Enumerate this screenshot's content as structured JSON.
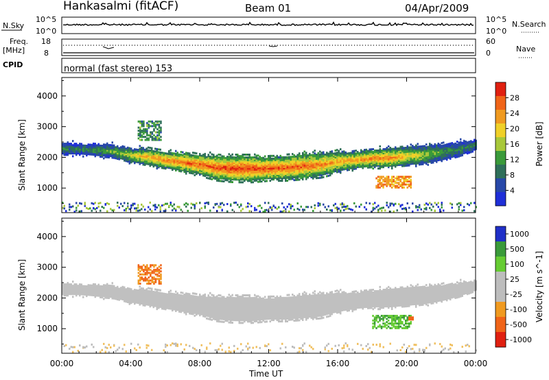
{
  "header": {
    "station": "Hankasalmi (fitACF)",
    "beam": "Beam 01",
    "date": "04/Apr/2009"
  },
  "strip_panels": {
    "nsky": {
      "label": "N.Sky",
      "tick_top": "10^5",
      "tick_bottom": "10^0",
      "right_tick_top": "10^5",
      "right_tick_bottom": "10^0",
      "right_label": "N.Search"
    },
    "freq": {
      "label_line1": "Freq.",
      "label_line2": "[MHz]",
      "tick_top": "18",
      "tick_bottom": "8",
      "right_tick_top": "60",
      "right_tick_bottom": "0",
      "right_label": "Nave"
    },
    "cpid": {
      "label": "CPID",
      "text": "normal (fast stereo) 153"
    }
  },
  "colors": {
    "power_scale": [
      "#1f2fd8",
      "#2848a8",
      "#2f6f5a",
      "#3a9a3a",
      "#a8c83a",
      "#f0d028",
      "#f09a20",
      "#f06418",
      "#e02010"
    ],
    "velocity_scale": [
      "#2030c8",
      "#3a9a3a",
      "#66cc33",
      "#bdbdbd",
      "#bdbdbd",
      "#f09a20",
      "#f06418",
      "#e02010"
    ],
    "ground_scatter": "#c0c0c0"
  },
  "chart_data": [
    {
      "type": "heatmap",
      "title": "",
      "ylabel": "Slant Range [km]",
      "xlabel": "Time UT",
      "x_ticks": [
        "00:00",
        "04:00",
        "08:00",
        "12:00",
        "16:00",
        "20:00",
        "00:00"
      ],
      "x_range_hours": [
        0,
        24
      ],
      "y_ticks": [
        1000,
        2000,
        3000,
        4000
      ],
      "ylim": [
        200,
        4600
      ],
      "colorbar": {
        "label": "Power [dB]",
        "ticks": [
          4,
          8,
          12,
          16,
          20,
          24,
          28
        ]
      },
      "main_band": {
        "description_hours": [
          0,
          1,
          2,
          3,
          4,
          5,
          6,
          7,
          8,
          9,
          10,
          11,
          12,
          13,
          14,
          15,
          16,
          17,
          18,
          19,
          20,
          21,
          22,
          23,
          24
        ],
        "upper_km": [
          2500,
          2450,
          2450,
          2400,
          2300,
          2300,
          2200,
          2150,
          2100,
          2050,
          2050,
          2050,
          2000,
          2050,
          2100,
          2150,
          2200,
          2200,
          2250,
          2300,
          2350,
          2400,
          2450,
          2500,
          2600
        ],
        "lower_km": [
          2150,
          2150,
          2100,
          2050,
          1900,
          1800,
          1700,
          1600,
          1500,
          1350,
          1300,
          1300,
          1350,
          1350,
          1400,
          1450,
          1600,
          1700,
          1750,
          1750,
          1800,
          1850,
          1950,
          2100,
          2300
        ],
        "peak_power_db": [
          10,
          10,
          12,
          14,
          18,
          22,
          24,
          25,
          26,
          27,
          28,
          28,
          27,
          26,
          26,
          24,
          22,
          22,
          24,
          24,
          20,
          16,
          12,
          10,
          10
        ]
      },
      "patches": [
        {
          "label": "04:30-05:30 near 2700-3200 km",
          "hours": [
            4.4,
            5.7
          ],
          "km": [
            2600,
            3200
          ],
          "power_db": 10
        },
        {
          "label": "18:30-20:00 near 1100-1400 km",
          "hours": [
            18.2,
            20.3
          ],
          "km": [
            1050,
            1400
          ],
          "power_db": 22
        }
      ]
    },
    {
      "type": "heatmap",
      "title": "",
      "ylabel": "Slant Range [km]",
      "xlabel": "Time UT",
      "x_ticks": [
        "00:00",
        "04:00",
        "08:00",
        "12:00",
        "16:00",
        "20:00",
        "00:00"
      ],
      "x_range_hours": [
        0,
        24
      ],
      "y_ticks": [
        1000,
        2000,
        3000,
        4000
      ],
      "ylim": [
        200,
        4600
      ],
      "colorbar": {
        "label": "Velocity [m s^-1]",
        "ticks": [
          1000,
          500,
          100,
          25,
          -25,
          -100,
          -500,
          -1000
        ]
      },
      "ground_scatter": "main band shown in grey",
      "patches": [
        {
          "label": "04:30-05:30 near 2600-3100 km",
          "hours": [
            4.4,
            5.7
          ],
          "km": [
            2500,
            3100
          ],
          "velocity_ms": -300
        },
        {
          "label": "18:00-20:00 near 1100-1400 km",
          "hours": [
            18.0,
            20.3
          ],
          "km": [
            1050,
            1450
          ],
          "velocity_ms": 120
        }
      ]
    }
  ]
}
